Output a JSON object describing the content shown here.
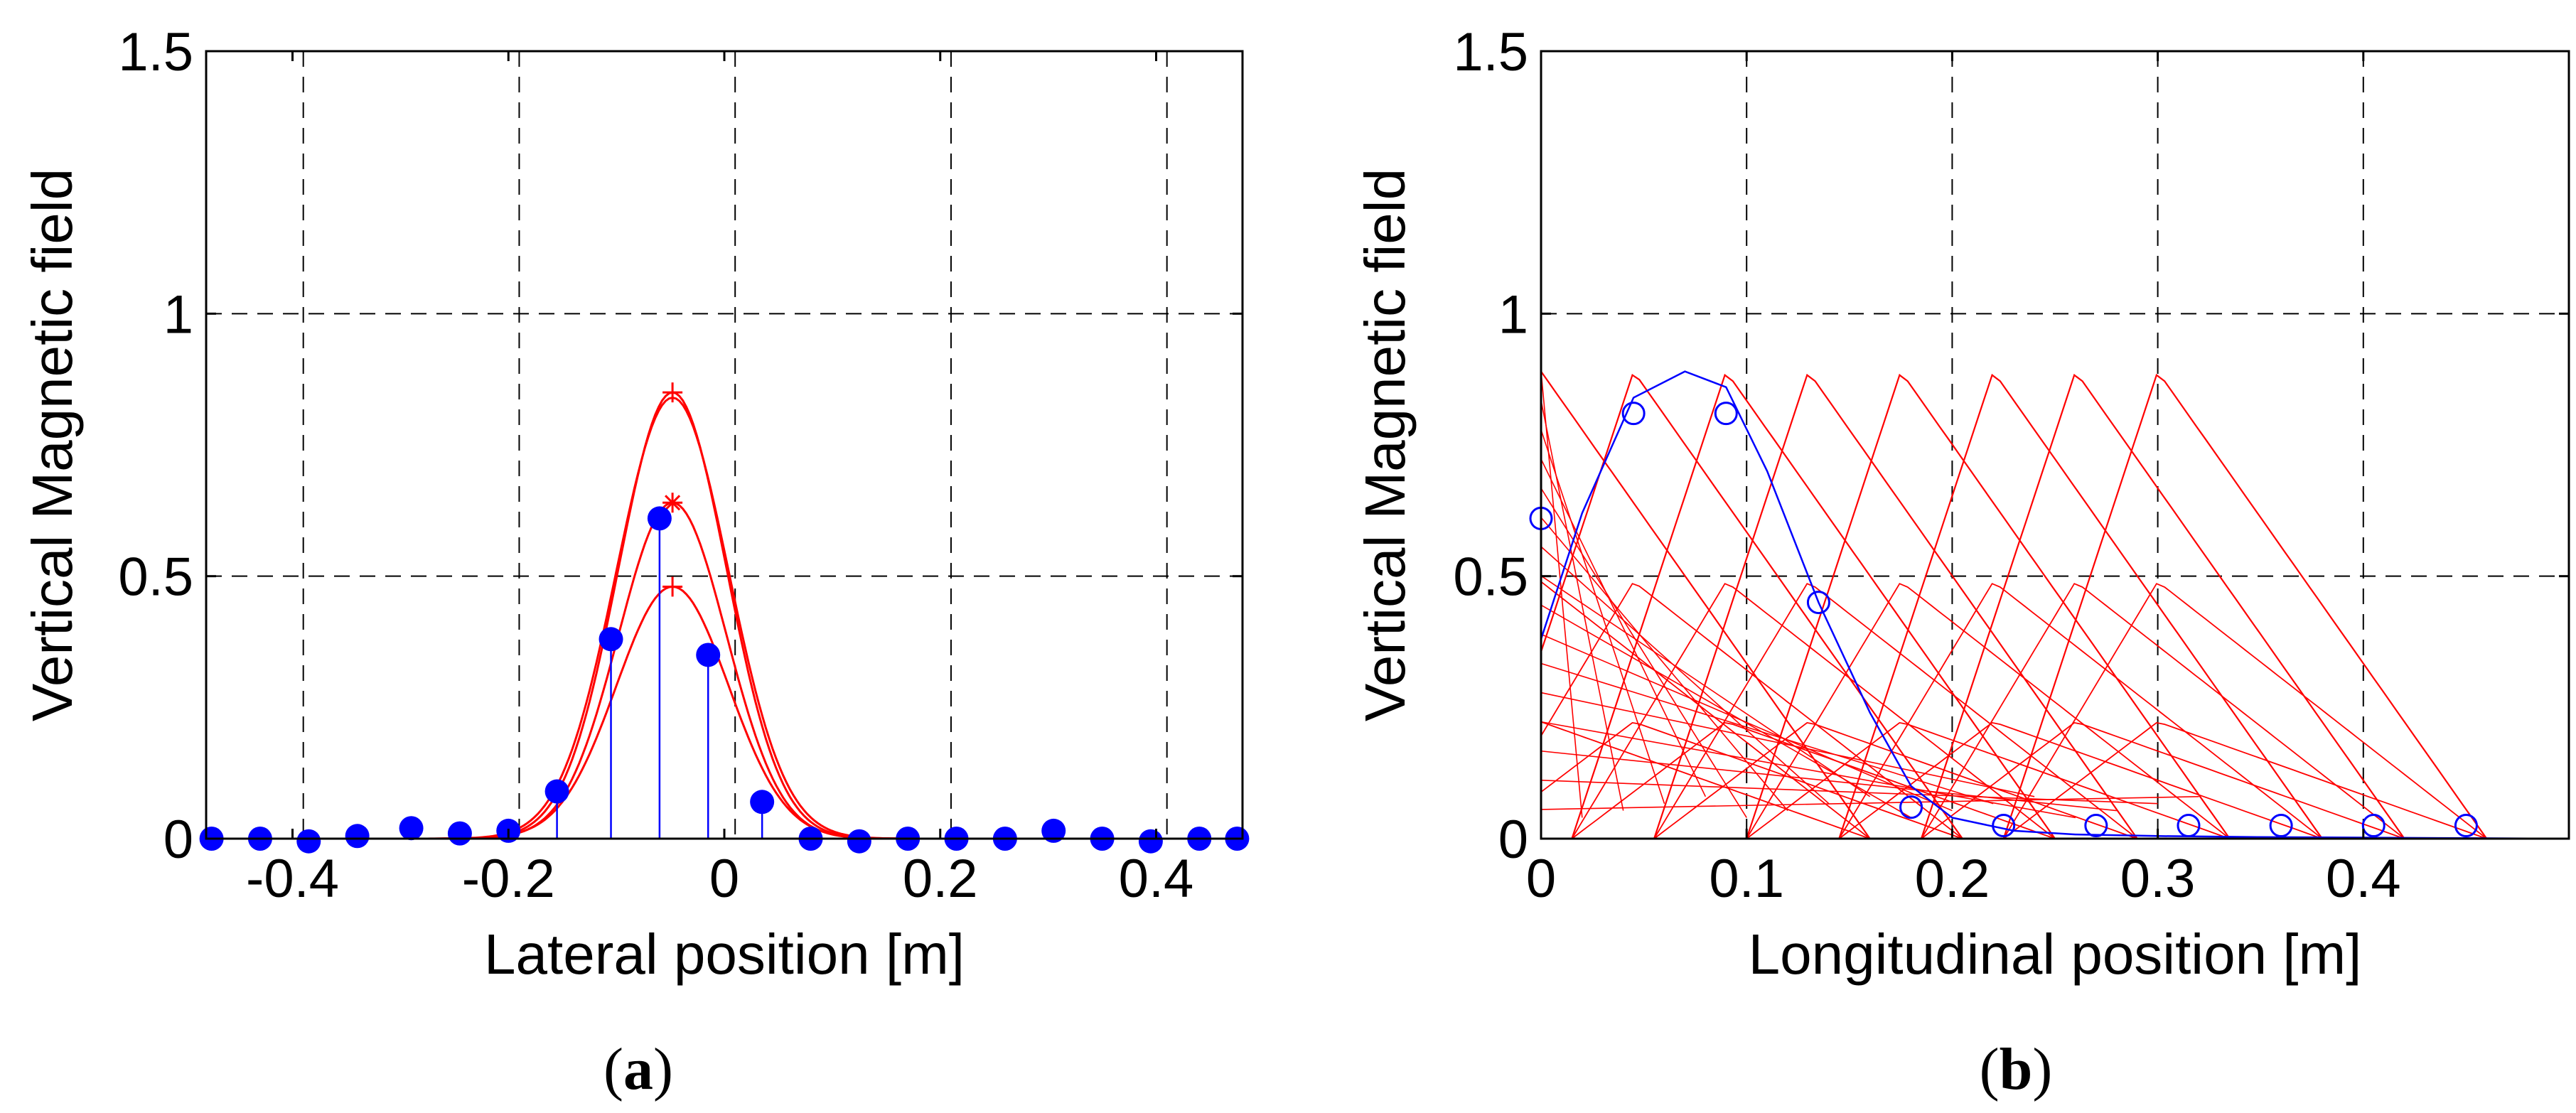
{
  "chart_data": [
    {
      "type": "line",
      "panel_label": "(a)",
      "panel_label_open": "(",
      "panel_label_letter": "a",
      "panel_label_close": ")",
      "xlabel": "Lateral position [m]",
      "ylabel": "Vertical Magnetic field",
      "xlim": [
        -0.48,
        0.48
      ],
      "ylim": [
        0,
        1.5
      ],
      "xticks": [
        -0.4,
        -0.2,
        0,
        0.2,
        0.4
      ],
      "xtick_labels": [
        "-0.4",
        "-0.2",
        "0",
        "0.2",
        "0.4"
      ],
      "yticks": [
        0,
        0.5,
        1,
        1.5
      ],
      "ytick_labels": [
        "0",
        "0.5",
        "1",
        "1.5"
      ],
      "vgrid": [
        -0.39,
        -0.19,
        0.01,
        0.21,
        0.41
      ],
      "hgrid": [
        0.5,
        1.0
      ],
      "grid": true,
      "line_color": "#ff0000",
      "marker_color": "#0000ff",
      "gaussian_curves": [
        {
          "name": "curve-1",
          "peak": 0.85,
          "center": -0.048,
          "sigma": 0.05
        },
        {
          "name": "curve-2",
          "peak": 0.84,
          "center": -0.048,
          "sigma": 0.052
        },
        {
          "name": "curve-3",
          "peak": 0.64,
          "center": -0.048,
          "sigma": 0.05
        },
        {
          "name": "curve-4",
          "peak": 0.48,
          "center": -0.048,
          "sigma": 0.052
        }
      ],
      "peak_markers": [
        {
          "x": -0.048,
          "y": 0.85,
          "marker": "+"
        },
        {
          "x": -0.048,
          "y": 0.64,
          "marker": "*"
        },
        {
          "x": -0.048,
          "y": 0.48,
          "marker": "+"
        }
      ],
      "points": {
        "x": [
          -0.475,
          -0.43,
          -0.385,
          -0.34,
          -0.29,
          -0.245,
          -0.2,
          -0.155,
          -0.105,
          -0.06,
          -0.015,
          0.035,
          0.08,
          0.125,
          0.17,
          0.215,
          0.26,
          0.305,
          0.35,
          0.395,
          0.44,
          0.475
        ],
        "y": [
          0.0,
          0.0,
          -0.005,
          0.005,
          0.02,
          0.01,
          0.015,
          0.09,
          0.38,
          0.61,
          0.35,
          0.07,
          0.0,
          -0.005,
          0.0,
          0.0,
          0.0,
          0.015,
          0.0,
          -0.005,
          0.0,
          0.0
        ],
        "stems": [
          false,
          false,
          false,
          false,
          false,
          false,
          false,
          true,
          true,
          true,
          true,
          true,
          false,
          false,
          false,
          false,
          false,
          false,
          false,
          false,
          false,
          false
        ]
      }
    },
    {
      "type": "line",
      "panel_label": "(b)",
      "panel_label_open": "(",
      "panel_label_letter": "b",
      "panel_label_close": ")",
      "xlabel": "Longitudinal position [m]",
      "ylabel": "Vertical Magnetic field",
      "xlim": [
        0,
        0.5
      ],
      "ylim": [
        0,
        1.5
      ],
      "xticks": [
        0,
        0.1,
        0.2,
        0.3,
        0.4
      ],
      "xtick_labels": [
        "0",
        "0.1",
        "0.2",
        "0.3",
        "0.4"
      ],
      "yticks": [
        0,
        0.5,
        1,
        1.5
      ],
      "ytick_labels": [
        "0",
        "0.5",
        "1",
        "1.5"
      ],
      "vgrid": [
        0.1,
        0.2,
        0.3,
        0.4
      ],
      "hgrid": [
        0.5,
        1.0
      ],
      "grid": true,
      "line_color": "#ff0000",
      "marker_color": "#0000ff",
      "red_family": {
        "peaks": [
          0.0,
          0.045,
          0.09,
          0.13,
          0.175,
          0.22,
          0.26,
          0.3
        ],
        "half_width_left": 0.075,
        "half_width_right": 0.16,
        "fan_count": 16,
        "peak_value": 0.89
      },
      "blue_curve": {
        "x": [
          0,
          0.02,
          0.045,
          0.07,
          0.09,
          0.11,
          0.135,
          0.16,
          0.18,
          0.2,
          0.23,
          0.26,
          0.3,
          0.35,
          0.4,
          0.45,
          0.5
        ],
        "y": [
          0.38,
          0.62,
          0.84,
          0.89,
          0.86,
          0.7,
          0.45,
          0.24,
          0.1,
          0.04,
          0.015,
          0.008,
          0.005,
          0.003,
          0.002,
          0.001,
          0.0
        ]
      },
      "points": {
        "x": [
          0.0,
          0.045,
          0.09,
          0.135,
          0.18,
          0.225,
          0.27,
          0.315,
          0.36,
          0.405,
          0.45
        ],
        "y": [
          0.61,
          0.81,
          0.81,
          0.45,
          0.06,
          0.025,
          0.025,
          0.025,
          0.025,
          0.025,
          0.025
        ]
      }
    }
  ]
}
